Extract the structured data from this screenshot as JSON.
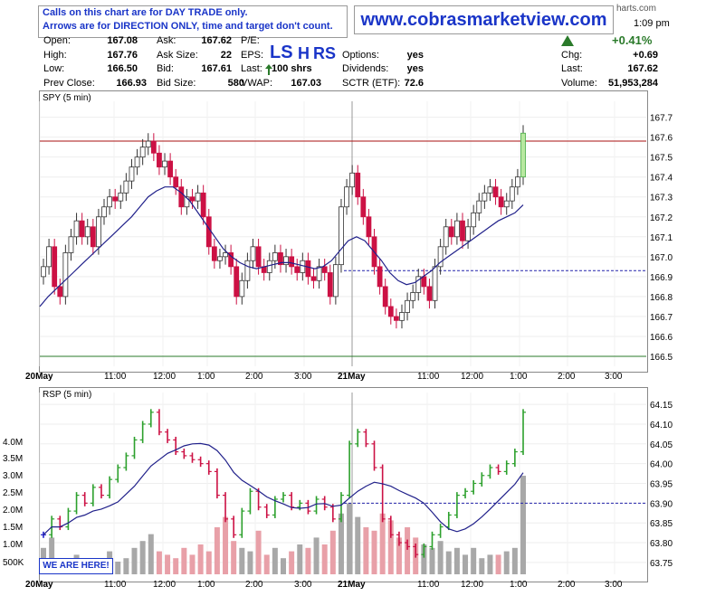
{
  "header": {
    "notice_line1": "Calls on this chart are for DAY TRADE only.",
    "notice_line2": "Arrows are for DIRECTION ONLY, time and target don't count.",
    "website": "www.cobrasmarketview.com",
    "time": "1:09 pm",
    "pct_change": "+0.41%",
    "source_fragment": "harts.com",
    "direction_indicator": "up-arrow",
    "signal_letters": [
      "LS",
      "H",
      "RS"
    ]
  },
  "quote": {
    "open_label": "Open:",
    "open": "167.08",
    "high_label": "High:",
    "high": "167.76",
    "low_label": "Low:",
    "low": "166.50",
    "prev_close_label": "Prev Close:",
    "prev_close": "166.93",
    "ask_label": "Ask:",
    "ask": "167.62",
    "ask_size_label": "Ask Size:",
    "ask_size": "22",
    "bid_label": "Bid:",
    "bid": "167.61",
    "bid_size_label": "Bid Size:",
    "bid_size": "580",
    "pe_label": "P/E:",
    "pe": "",
    "eps_label": "EPS:",
    "last_shares_label": "Last:",
    "last_shares": "100 shrs",
    "vwap_label": "VWAP:",
    "vwap": "167.03",
    "options_label": "Options:",
    "options": "yes",
    "dividends_label": "Dividends:",
    "dividends": "yes",
    "sctr_label": "SCTR (ETF):",
    "sctr": "72.6",
    "chg_label": "Chg:",
    "chg": "+0.69",
    "last_label": "Last:",
    "last": "167.62",
    "volume_label": "Volume:",
    "volume": "51,953,284"
  },
  "colors": {
    "up": "#2ca02c",
    "down": "#cc1144",
    "neutral_bar": "#2020cc",
    "ma": "#20208a",
    "resistance": "#aa1111",
    "dashed": "#2222aa",
    "volume_down": "#e8a0a8",
    "volume_up": "#a8a8a8",
    "brand": "#1a35c8"
  },
  "badge": "WE ARE HERE!",
  "chart_data": [
    {
      "type": "candlestick",
      "title": "SPY (5 min)",
      "x_ticks": [
        "20May",
        "11:00",
        "12:00",
        "1:00",
        "2:00",
        "3:00",
        "21May",
        "11:00",
        "12:00",
        "1:00",
        "2:00",
        "3:00"
      ],
      "ylim": [
        166.45,
        167.78
      ],
      "y_ticks": [
        167.7,
        167.6,
        167.5,
        167.4,
        167.3,
        167.2,
        167.1,
        167.0,
        166.9,
        166.8,
        166.7,
        166.6,
        166.5
      ],
      "resistance_line": 167.58,
      "support_line": 166.5,
      "dashed_line": 166.93,
      "closes": [
        166.95,
        167.05,
        166.85,
        166.8,
        167.02,
        167.1,
        167.18,
        167.1,
        167.15,
        167.05,
        167.2,
        167.25,
        167.3,
        167.28,
        167.32,
        167.38,
        167.45,
        167.5,
        167.55,
        167.58,
        167.52,
        167.45,
        167.48,
        167.4,
        167.35,
        167.25,
        167.3,
        167.28,
        167.32,
        167.2,
        167.05,
        166.98,
        167.0,
        167.02,
        166.95,
        166.8,
        166.88,
        166.98,
        167.05,
        166.95,
        166.92,
        166.98,
        167.02,
        166.96,
        167.0,
        166.95,
        166.92,
        166.98,
        166.9,
        166.88,
        166.95,
        166.92,
        166.8,
        166.96,
        167.25,
        167.35,
        167.42,
        167.3,
        167.2,
        167.1,
        166.95,
        166.85,
        166.75,
        166.7,
        166.68,
        166.72,
        166.78,
        166.82,
        166.9,
        166.85,
        166.78,
        166.95,
        167.05,
        167.15,
        167.1,
        167.18,
        167.08,
        167.15,
        167.22,
        167.28,
        167.32,
        167.35,
        167.3,
        167.25,
        167.28,
        167.35,
        167.4,
        167.62
      ],
      "ma": [
        166.75,
        166.8,
        166.84,
        166.88,
        166.92,
        166.96,
        167.0,
        167.04,
        167.08,
        167.12,
        167.16,
        167.2,
        167.25,
        167.3,
        167.33,
        167.35,
        167.35,
        167.32,
        167.28,
        167.22,
        167.16,
        167.1,
        167.04,
        167.0,
        166.97,
        166.95,
        166.94,
        166.95,
        166.96,
        166.97,
        166.97,
        166.96,
        166.95,
        166.94,
        166.95,
        166.98,
        167.03,
        167.08,
        167.1,
        167.08,
        167.03,
        166.98,
        166.92,
        166.88,
        166.86,
        166.87,
        166.9,
        166.93,
        166.97,
        167.0,
        167.03,
        167.06,
        167.09,
        167.12,
        167.15,
        167.18,
        167.2,
        167.22,
        167.26
      ]
    },
    {
      "type": "ohlc",
      "title": "RSP (5 min)",
      "x_ticks": [
        "20May",
        "11:00",
        "12:00",
        "1:00",
        "2:00",
        "3:00",
        "21May",
        "11:00",
        "12:00",
        "1:00",
        "2:00",
        "3:00"
      ],
      "ylim": [
        63.72,
        64.18
      ],
      "y_ticks": [
        64.15,
        64.1,
        64.05,
        64.0,
        63.95,
        63.9,
        63.85,
        63.8,
        63.75
      ],
      "volume_ticks": [
        "4.0M",
        "3.5M",
        "3.0M",
        "2.5M",
        "2.0M",
        "1.5M",
        "1.0M",
        "500K"
      ],
      "dashed_line": 63.9,
      "closes": [
        63.82,
        63.86,
        63.84,
        63.88,
        63.92,
        63.9,
        63.94,
        63.92,
        63.96,
        63.99,
        64.02,
        64.06,
        64.1,
        64.13,
        64.08,
        64.06,
        64.03,
        64.02,
        64.01,
        64.0,
        63.98,
        63.92,
        63.86,
        63.82,
        63.88,
        63.93,
        63.89,
        63.87,
        63.91,
        63.92,
        63.89,
        63.9,
        63.88,
        63.91,
        63.89,
        63.86,
        63.92,
        64.05,
        64.08,
        64.05,
        63.99,
        63.86,
        63.82,
        63.8,
        63.79,
        63.77,
        63.79,
        63.82,
        63.84,
        63.87,
        63.92,
        63.93,
        63.95,
        63.97,
        63.99,
        63.98,
        64.0,
        64.03,
        64.13
      ],
      "volumes": [
        0.9,
        1.2,
        0.6,
        0.5,
        0.7,
        0.5,
        0.4,
        0.6,
        0.8,
        0.5,
        0.6,
        0.9,
        1.1,
        1.3,
        0.8,
        0.7,
        0.6,
        0.9,
        0.7,
        1.0,
        0.8,
        1.5,
        1.8,
        1.1,
        0.9,
        0.8,
        1.4,
        0.7,
        0.9,
        0.6,
        0.8,
        1.0,
        0.9,
        1.2,
        1.0,
        1.4,
        1.9,
        2.2,
        1.8,
        1.5,
        1.4,
        1.9,
        1.7,
        1.2,
        1.5,
        1.2,
        1.0,
        0.9,
        1.1,
        0.8,
        0.9,
        0.7,
        0.9,
        0.6,
        0.7,
        0.7,
        0.8,
        0.9,
        3.0
      ]
    }
  ]
}
